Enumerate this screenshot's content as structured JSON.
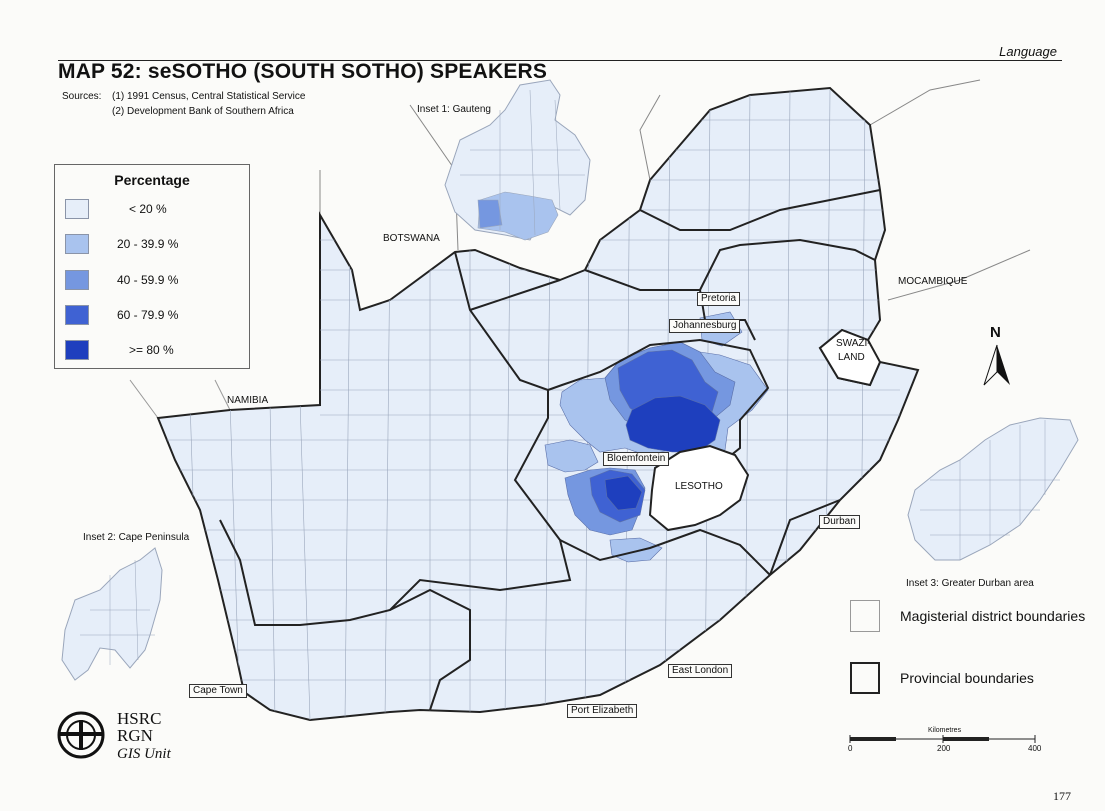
{
  "header": {
    "section": "Language",
    "title": "MAP 52: seSOTHO (SOUTH SOTHO) SPEAKERS",
    "sources_label": "Sources:",
    "sources": [
      "(1) 1991 Census, Central Statistical Service",
      "(2) Development Bank of Southern Africa"
    ]
  },
  "legend": {
    "title": "Percentage",
    "classes": [
      {
        "label": "<  20   %",
        "color": "#e6eef9"
      },
      {
        "label": "20  -  39.9 %",
        "color": "#a9c3ee"
      },
      {
        "label": "40  -  59.9 %",
        "color": "#7597e0"
      },
      {
        "label": "60  -  79.9 %",
        "color": "#3f62d3"
      },
      {
        "label": ">= 80    %",
        "color": "#1e3fbe"
      }
    ]
  },
  "map": {
    "countries": {
      "botswana": "BOTSWANA",
      "namibia": "NAMIBIA",
      "mocambique": "MOCAMBIQUE",
      "swaziland_1": "SWAZI-",
      "swaziland_2": "LAND",
      "lesotho": "LESOTHO"
    },
    "cities": {
      "pretoria": "Pretoria",
      "johannesburg": "Johannesburg",
      "bloemfontein": "Bloemfontein",
      "durban": "Durban",
      "east_london": "East London",
      "port_elizabeth": "Port Elizabeth",
      "cape_town": "Cape Town"
    },
    "insets": {
      "gauteng": "Inset 1: Gauteng",
      "cape_peninsula": "Inset 2: Cape Peninsula",
      "durban": "Inset 3: Greater Durban area"
    },
    "north": "N"
  },
  "key": {
    "magisterial": "Magisterial district boundaries",
    "provincial": "Provincial boundaries"
  },
  "scale": {
    "title": "Kilometres",
    "ticks": [
      "0",
      "200",
      "400"
    ]
  },
  "logo": {
    "line1": "HSRC",
    "line2": "RGN",
    "line3": "GIS Unit"
  },
  "page_number": "177"
}
